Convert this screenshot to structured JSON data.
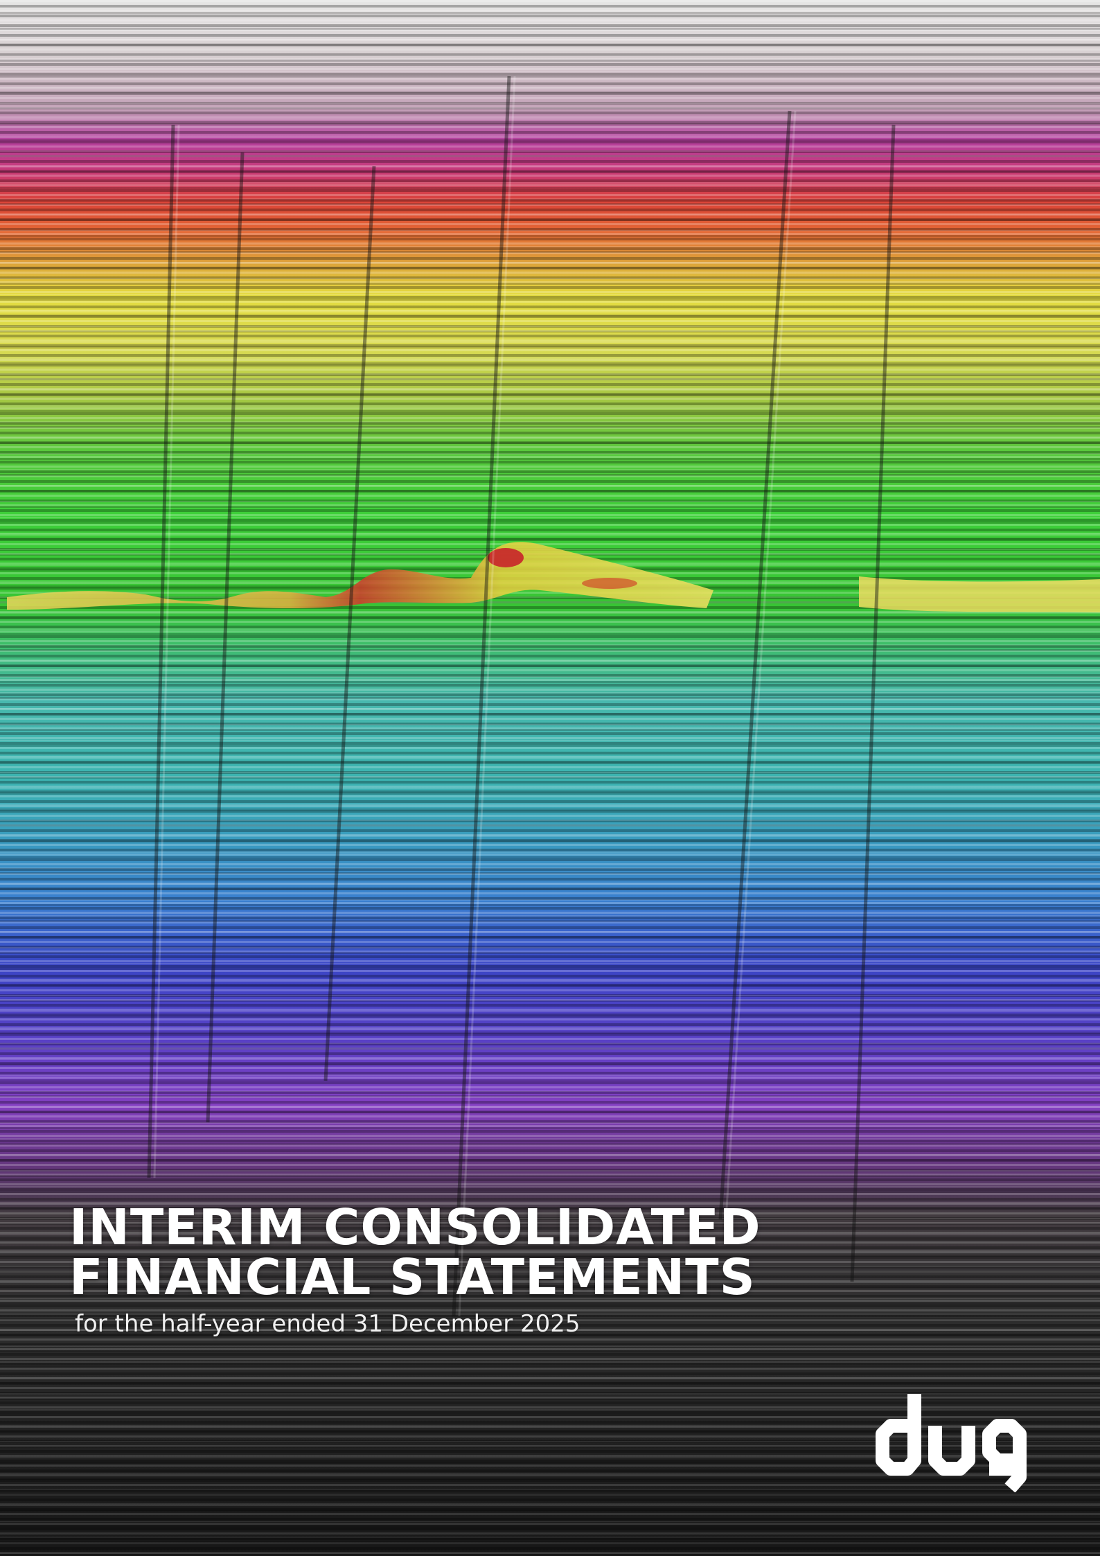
{
  "cover": {
    "title_line1": "INTERIM CONSOLIDATED",
    "title_line2": "FINANCIAL STATEMENTS",
    "subtitle": "for the half-year ended 31 December 2025",
    "logo_text": "dug"
  },
  "colors": {
    "text": "#ffffff",
    "band_top": "#dcdcdc",
    "band_magenta": "#b23aa8",
    "band_red": "#e0453a",
    "band_yellow": "#e8df3a",
    "band_green": "#3fd03a",
    "band_cyan": "#3fb0b4",
    "band_blue": "#3a46c8",
    "band_violet": "#8040c0",
    "band_bottom": "#3a3a3a"
  },
  "background": {
    "description_icon": "seismic-section-image"
  }
}
